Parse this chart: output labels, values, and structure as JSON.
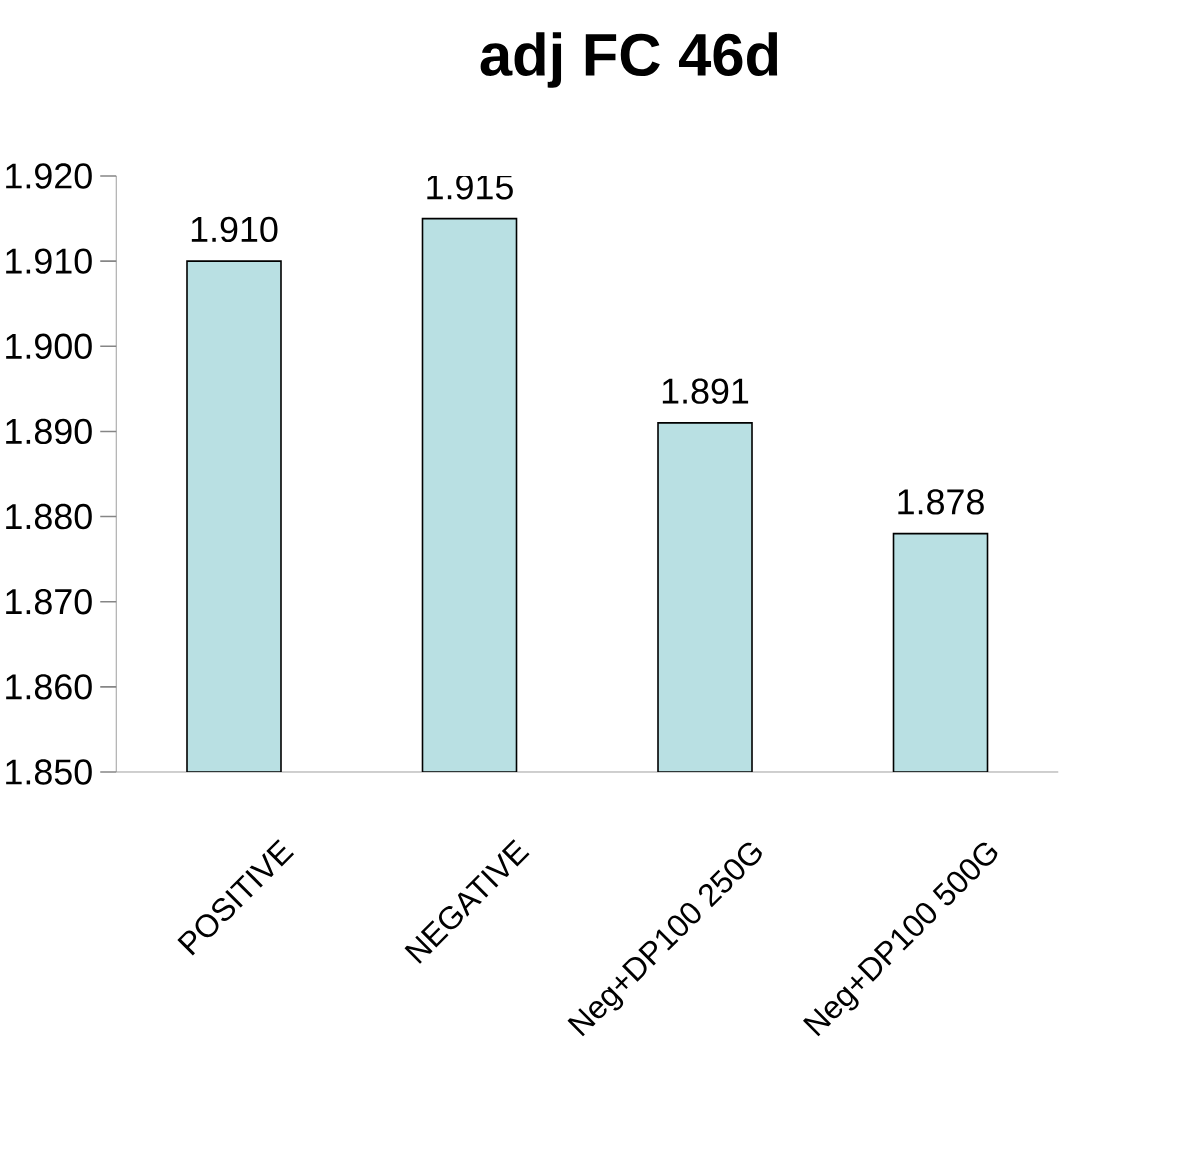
{
  "chart_data": {
    "type": "bar",
    "title": "adj FC 46d",
    "categories": [
      "POSITIVE",
      "NEGATIVE",
      "Neg+DP100 250G",
      "Neg+DP100 500G"
    ],
    "values": [
      1.91,
      1.915,
      1.891,
      1.878
    ],
    "value_labels": [
      "1.910",
      "1.915",
      "1.891",
      "1.878"
    ],
    "color": "#b9e0e3",
    "ylim": [
      1.85,
      1.92
    ],
    "yticks": [
      {
        "value": 1.85,
        "label": "1.850"
      },
      {
        "value": 1.86,
        "label": "1.860"
      },
      {
        "value": 1.87,
        "label": "1.870"
      },
      {
        "value": 1.88,
        "label": "1.880"
      },
      {
        "value": 1.89,
        "label": "1.890"
      },
      {
        "value": 1.9,
        "label": "1.900"
      },
      {
        "value": 1.91,
        "label": "1.910"
      },
      {
        "value": 1.92,
        "label": "1.920"
      }
    ],
    "grid": false
  }
}
